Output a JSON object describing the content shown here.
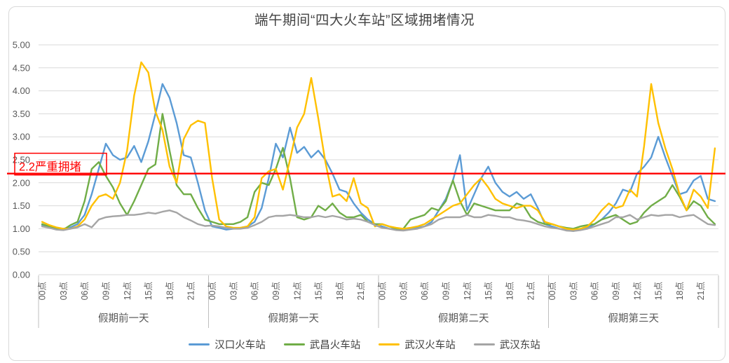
{
  "chart_data": {
    "type": "line",
    "title": "端午期间“四大火车站”区域拥堵情况",
    "grid": "horizontal",
    "legend_position": "bottom",
    "y_axis": {
      "min": 0,
      "max": 5,
      "step": 0.5,
      "tick_labels": [
        "0.00",
        "0.50",
        "1.00",
        "1.50",
        "2.00",
        "2.50",
        "3.00",
        "3.50",
        "4.00",
        "4.50",
        "5.00"
      ]
    },
    "x_axis": {
      "points_per_day": 24,
      "hour_ticks": [
        "00点",
        "03点",
        "06点",
        "09点",
        "12点",
        "15点",
        "18点",
        "21点"
      ],
      "day_groups": [
        "假期前一天",
        "假期第一天",
        "假期第二天",
        "假期第三天"
      ]
    },
    "threshold": {
      "value": 2.2,
      "label": "2.2严重拥堵",
      "color": "#FF0000"
    },
    "series": [
      {
        "name": "汉口火车站",
        "key": "hankou",
        "color": "#5B9BD5",
        "values": [
          1.08,
          1.05,
          1.0,
          1.0,
          1.03,
          1.1,
          1.3,
          1.75,
          2.3,
          2.85,
          2.6,
          2.5,
          2.55,
          2.8,
          2.45,
          2.9,
          3.5,
          4.15,
          3.85,
          3.3,
          2.6,
          2.55,
          2.0,
          1.4,
          1.05,
          1.02,
          0.98,
          1.0,
          1.02,
          1.05,
          1.15,
          1.45,
          2.1,
          2.85,
          2.55,
          3.2,
          2.65,
          2.78,
          2.55,
          2.7,
          2.5,
          2.2,
          1.85,
          1.8,
          1.55,
          1.35,
          1.2,
          1.1,
          1.05,
          1.0,
          0.98,
          0.97,
          1.0,
          1.02,
          1.05,
          1.15,
          1.4,
          1.65,
          2.05,
          2.6,
          1.4,
          1.75,
          2.1,
          2.35,
          2.0,
          1.8,
          1.7,
          1.8,
          1.65,
          1.75,
          1.45,
          1.1,
          1.05,
          1.0,
          0.97,
          0.95,
          0.98,
          1.02,
          1.1,
          1.2,
          1.35,
          1.55,
          1.85,
          1.8,
          2.2,
          2.35,
          2.55,
          3.0,
          2.55,
          2.15,
          1.75,
          1.8,
          2.05,
          2.15,
          1.65,
          1.6
        ]
      },
      {
        "name": "武昌火车站",
        "key": "wuchang",
        "color": "#70AD47",
        "values": [
          1.1,
          1.05,
          1.0,
          0.98,
          1.08,
          1.15,
          1.6,
          2.3,
          2.45,
          2.15,
          1.9,
          1.55,
          1.3,
          1.6,
          1.95,
          2.3,
          2.4,
          3.5,
          2.7,
          1.95,
          1.75,
          1.75,
          1.45,
          1.2,
          1.15,
          1.1,
          1.1,
          1.1,
          1.15,
          1.25,
          1.8,
          2.0,
          1.95,
          2.3,
          2.76,
          2.1,
          1.25,
          1.2,
          1.25,
          1.5,
          1.4,
          1.55,
          1.35,
          1.25,
          1.25,
          1.3,
          1.15,
          1.1,
          1.1,
          1.05,
          1.0,
          1.0,
          1.2,
          1.25,
          1.3,
          1.45,
          1.4,
          1.6,
          2.05,
          1.6,
          1.3,
          1.55,
          1.5,
          1.45,
          1.4,
          1.4,
          1.4,
          1.55,
          1.5,
          1.25,
          1.15,
          1.1,
          1.1,
          1.05,
          1.02,
          1.0,
          1.05,
          1.08,
          1.1,
          1.2,
          1.25,
          1.3,
          1.2,
          1.1,
          1.15,
          1.35,
          1.5,
          1.6,
          1.7,
          1.95,
          1.7,
          1.4,
          1.6,
          1.5,
          1.25,
          1.1
        ]
      },
      {
        "name": "武汉火车站",
        "key": "wuhan",
        "color": "#FFC000",
        "values": [
          1.15,
          1.08,
          1.03,
          1.0,
          1.0,
          1.05,
          1.2,
          1.5,
          1.7,
          1.75,
          1.65,
          2.0,
          2.7,
          3.9,
          4.62,
          4.4,
          3.55,
          3.15,
          2.35,
          2.0,
          2.95,
          3.25,
          3.35,
          3.3,
          2.1,
          1.2,
          1.05,
          1.02,
          1.02,
          1.05,
          1.25,
          2.1,
          2.25,
          2.3,
          1.85,
          2.5,
          3.2,
          3.5,
          4.28,
          3.4,
          2.45,
          1.7,
          1.75,
          1.6,
          2.1,
          1.55,
          1.45,
          1.05,
          1.1,
          1.05,
          1.02,
          1.0,
          1.02,
          1.05,
          1.1,
          1.2,
          1.3,
          1.4,
          1.5,
          1.55,
          1.75,
          1.95,
          2.1,
          1.9,
          1.65,
          1.55,
          1.5,
          1.45,
          1.5,
          1.5,
          1.4,
          1.15,
          1.1,
          1.05,
          1.0,
          0.98,
          1.0,
          1.05,
          1.2,
          1.4,
          1.55,
          1.45,
          1.5,
          1.85,
          1.7,
          2.8,
          4.15,
          3.3,
          2.75,
          2.3,
          1.75,
          1.4,
          1.85,
          1.7,
          1.45,
          2.75
        ]
      },
      {
        "name": "武汉东站",
        "key": "wuhandong",
        "color": "#A5A5A5",
        "values": [
          1.05,
          1.02,
          0.98,
          0.97,
          1.0,
          1.03,
          1.1,
          1.03,
          1.2,
          1.25,
          1.27,
          1.28,
          1.3,
          1.3,
          1.32,
          1.35,
          1.33,
          1.37,
          1.4,
          1.35,
          1.25,
          1.18,
          1.1,
          1.06,
          1.07,
          1.05,
          1.02,
          1.0,
          1.0,
          1.02,
          1.08,
          1.15,
          1.25,
          1.28,
          1.28,
          1.3,
          1.28,
          1.25,
          1.25,
          1.28,
          1.25,
          1.28,
          1.25,
          1.2,
          1.22,
          1.2,
          1.15,
          1.08,
          1.02,
          1.0,
          0.97,
          0.96,
          0.98,
          1.0,
          1.05,
          1.1,
          1.2,
          1.25,
          1.25,
          1.25,
          1.3,
          1.25,
          1.25,
          1.3,
          1.28,
          1.25,
          1.25,
          1.2,
          1.18,
          1.15,
          1.1,
          1.05,
          1.02,
          1.0,
          0.96,
          0.95,
          0.97,
          1.0,
          1.05,
          1.1,
          1.15,
          1.25,
          1.25,
          1.3,
          1.2,
          1.25,
          1.3,
          1.28,
          1.3,
          1.3,
          1.25,
          1.28,
          1.3,
          1.2,
          1.1,
          1.08
        ]
      }
    ]
  }
}
